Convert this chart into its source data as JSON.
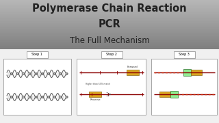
{
  "title_line1": "Polymerase Chain Reaction",
  "title_line2": "PCR",
  "title_line3": "The Full Mechanism",
  "bg_body_color": "#f0f0f0",
  "step_labels": [
    "Step 1",
    "Step 2",
    "Step 3"
  ],
  "dna_color": "#8B0000",
  "primer_color": "#DAA520",
  "green_box_color": "#90EE90",
  "text_color": "#222222",
  "forward_label": "Forward",
  "reverse_label": "Reverse",
  "primer_label": "Higher than 65% match",
  "header_top_color": "#aaaaaa",
  "header_bot_color": "#777777"
}
